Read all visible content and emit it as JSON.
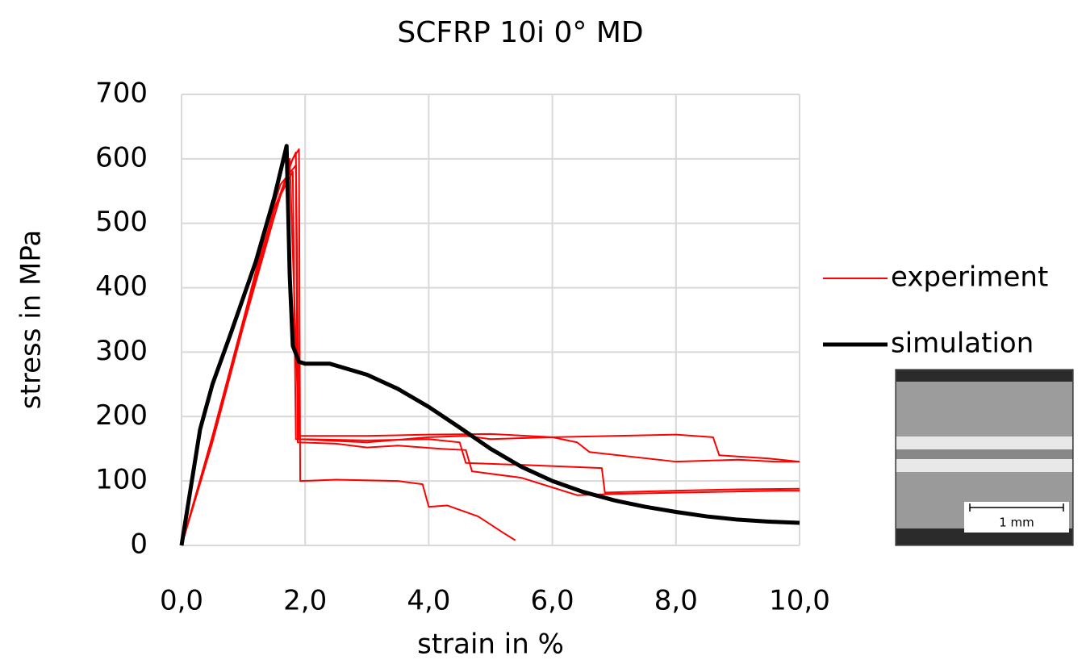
{
  "chart_data": {
    "type": "line",
    "title": "SCFRP 10i 0° MD",
    "x_label": "strain in %",
    "y_label": "stress in MPa",
    "xlim": [
      0,
      10
    ],
    "ylim": [
      0,
      700
    ],
    "xticks": [
      {
        "value": 0,
        "label": "0,0"
      },
      {
        "value": 2,
        "label": "2,0"
      },
      {
        "value": 4,
        "label": "4,0"
      },
      {
        "value": 6,
        "label": "6,0"
      },
      {
        "value": 8,
        "label": "8,0"
      },
      {
        "value": 10,
        "label": "10,0"
      }
    ],
    "yticks": [
      0,
      100,
      200,
      300,
      400,
      500,
      600,
      700
    ],
    "grid": true,
    "legend": "right",
    "inset_label": "1 mm",
    "series": [
      {
        "name": "experiment",
        "color": "#ff0000",
        "width": 2,
        "x": [
          0,
          0.5,
          1,
          1.5,
          1.8,
          1.9,
          1.92,
          2.5,
          3.5,
          3.9,
          4.0,
          4.3,
          4.8,
          5.2,
          5.4
        ],
        "values": [
          0,
          170,
          350,
          520,
          600,
          615,
          100,
          102,
          100,
          95,
          60,
          62,
          45,
          20,
          8
        ]
      },
      {
        "color": "#ff0000",
        "width": 2,
        "x": [
          0,
          0.5,
          1,
          1.5,
          1.75,
          1.85,
          1.9,
          3,
          4,
          5,
          6,
          7,
          8,
          8.6,
          8.7,
          9.5,
          10
        ],
        "values": [
          0,
          160,
          340,
          510,
          590,
          610,
          170,
          170,
          172,
          173,
          168,
          170,
          172,
          168,
          140,
          135,
          130
        ]
      },
      {
        "color": "#ff0000",
        "width": 2,
        "x": [
          0,
          0.5,
          1,
          1.5,
          1.7,
          1.75,
          1.9,
          3,
          4,
          4.5,
          4.6,
          5.5,
          6.8,
          6.85,
          8,
          9,
          10
        ],
        "values": [
          0,
          165,
          345,
          520,
          570,
          600,
          165,
          163,
          165,
          160,
          128,
          125,
          120,
          82,
          85,
          87,
          88
        ]
      },
      {
        "color": "#ff0000",
        "width": 2,
        "x": [
          0,
          0.5,
          1,
          1.4,
          1.6,
          1.85,
          1.88,
          2.5,
          3,
          3.5,
          4.2,
          4.6,
          4.7,
          5.5,
          6,
          6.4,
          7,
          9.7,
          10
        ],
        "values": [
          0,
          168,
          350,
          500,
          560,
          590,
          160,
          158,
          152,
          155,
          150,
          148,
          115,
          105,
          90,
          78,
          80,
          85,
          85
        ]
      },
      {
        "color": "#ff0000",
        "width": 2,
        "x": [
          0,
          0.5,
          1,
          1.5,
          1.8,
          1.85,
          3,
          4,
          4.6,
          5,
          6,
          6.4,
          6.6,
          8,
          9,
          9.6,
          9.65,
          10
        ],
        "values": [
          0,
          165,
          345,
          525,
          580,
          165,
          160,
          168,
          170,
          165,
          168,
          160,
          145,
          130,
          133,
          130,
          130,
          130
        ]
      },
      {
        "name": "simulation",
        "color": "#000000",
        "width": 5,
        "x": [
          0,
          0.3,
          0.5,
          0.8,
          1.2,
          1.5,
          1.7,
          1.75,
          1.8,
          1.9,
          2,
          2.4,
          3,
          3.5,
          4,
          4.5,
          5,
          5.5,
          6,
          6.5,
          7,
          7.5,
          8,
          8.5,
          9,
          9.5,
          10
        ],
        "values": [
          0,
          180,
          250,
          330,
          440,
          540,
          620,
          420,
          310,
          285,
          282,
          282,
          265,
          243,
          215,
          183,
          150,
          122,
          100,
          83,
          70,
          60,
          52,
          45,
          40,
          37,
          35
        ]
      }
    ]
  }
}
